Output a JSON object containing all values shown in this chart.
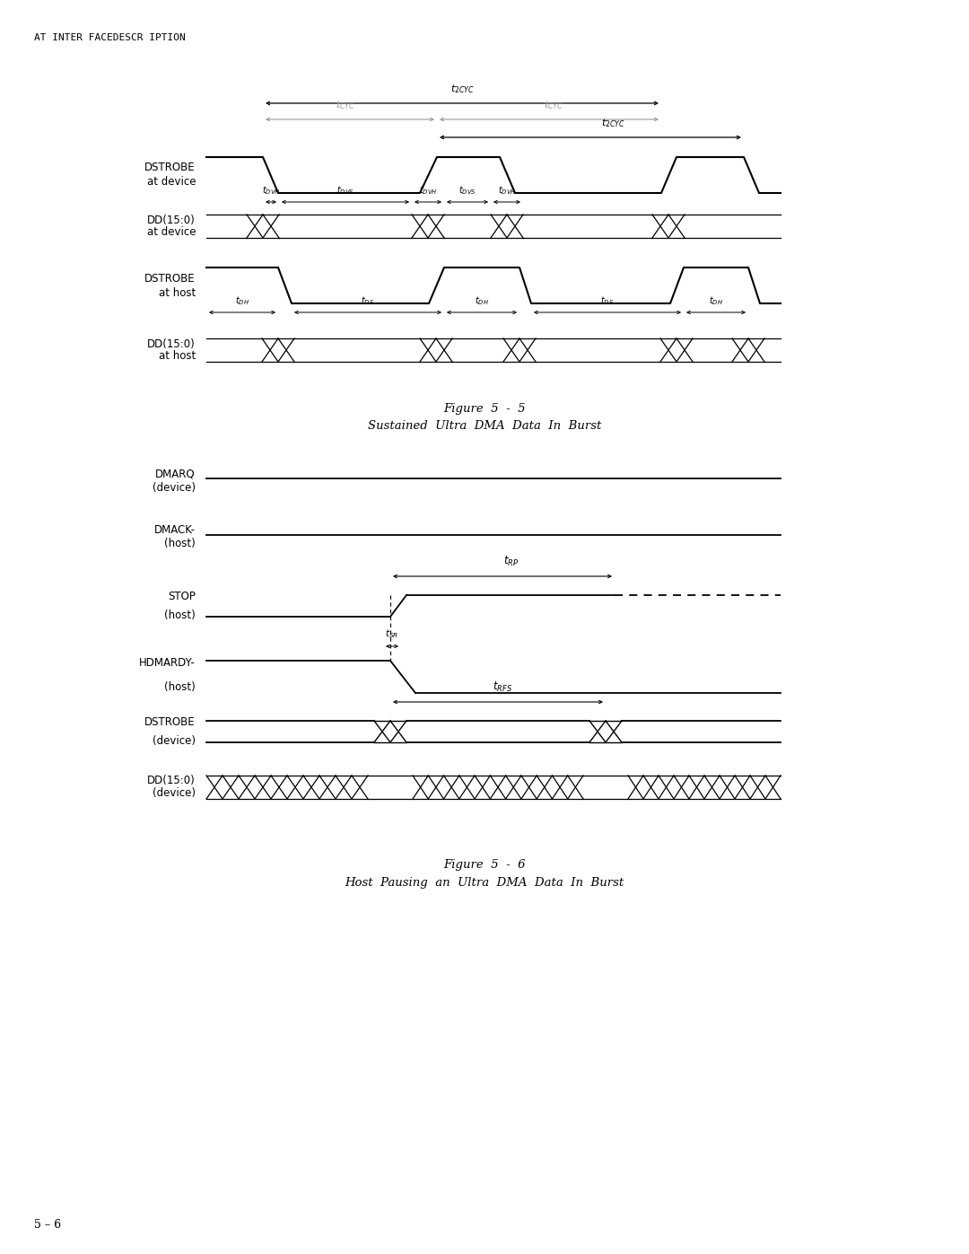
{
  "page_label": "AT INTER FACEDESCR IPTION",
  "page_number": "5 – 6",
  "fig1_caption_line1": "Figure  5  -  5",
  "fig1_caption_line2": "Sustained  Ultra  DMA  Data  In  Burst",
  "fig2_caption_line1": "Figure  5  -  6",
  "fig2_caption_line2": "Host  Pausing  an  Ultra  DMA  Data  In  Burst",
  "bg_color": "#ffffff",
  "line_color": "#000000",
  "gray_line_color": "#999999"
}
